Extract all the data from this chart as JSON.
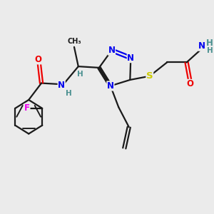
{
  "bg_color": "#ebebeb",
  "bond_color": "#1a1a1a",
  "bond_lw": 1.6,
  "atom_colors": {
    "N": "#0000ee",
    "O": "#ee0000",
    "S": "#cccc00",
    "F": "#ee00ee",
    "C": "#1a1a1a",
    "H": "#4a9090"
  },
  "font_size": 8.5,
  "fig_size": [
    3.0,
    3.0
  ],
  "dpi": 100
}
